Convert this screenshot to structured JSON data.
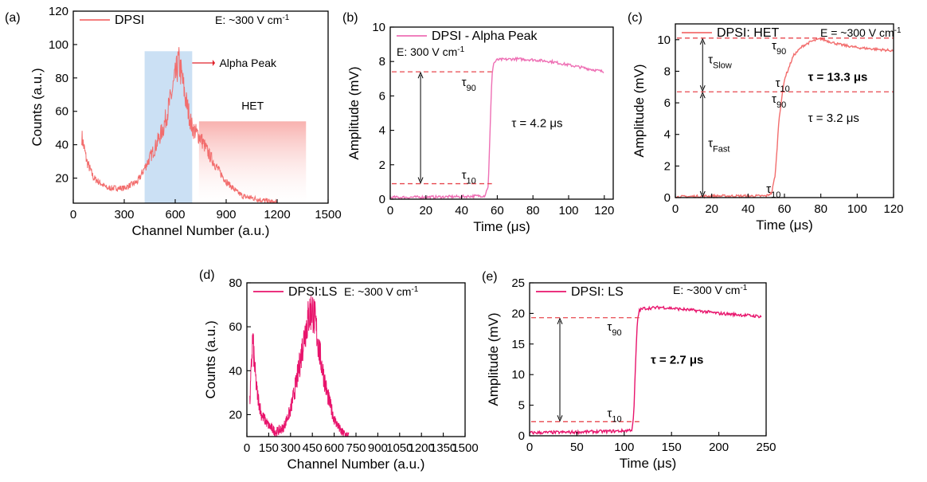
{
  "colors": {
    "salmon": "#f26d6d",
    "salmon_fill": "#f7a3a0",
    "pink": "#ee6fb4",
    "magenta": "#e8146c",
    "band_blue": "#b9d6f0",
    "dash": "#e8484f",
    "tau_red": "#e0242c",
    "tau_light": "#f2787a"
  },
  "chart_data": [
    {
      "id": "a",
      "panel_label": "(a)",
      "type": "line",
      "legend": "DPSI",
      "field": "E: ~300 V cm",
      "field_sup": "-1",
      "xlabel": "Channel Number (a.u.)",
      "ylabel": "Counts (a.u.)",
      "xlim": [
        0,
        1500
      ],
      "ylim": [
        5,
        120
      ],
      "xticks": [
        0,
        300,
        600,
        900,
        1200,
        1500
      ],
      "yticks": [
        20,
        40,
        60,
        80,
        100,
        120
      ],
      "shaded_band": {
        "x": [
          420,
          700
        ],
        "y": [
          5,
          96
        ]
      },
      "annotations": [
        "Alpha Peak",
        "HET"
      ],
      "het_region": {
        "x": [
          740,
          1370
        ],
        "y": [
          5,
          54
        ]
      },
      "x": [
        50,
        80,
        120,
        200,
        300,
        380,
        430,
        480,
        530,
        570,
        600,
        620,
        640,
        660,
        700,
        750,
        800,
        860,
        900,
        960,
        1000,
        1060,
        1100,
        1150,
        1200
      ],
      "values": [
        45,
        30,
        20,
        14,
        14,
        18,
        28,
        38,
        50,
        66,
        80,
        90,
        80,
        68,
        50,
        44,
        34,
        24,
        18,
        12,
        9,
        8,
        7,
        6,
        5
      ]
    },
    {
      "id": "b",
      "panel_label": "(b)",
      "type": "line",
      "legend": "DPSI - Alpha Peak",
      "field": "E: 300 V cm",
      "field_sup": "-1",
      "xlabel": "Time (μs)",
      "ylabel": "Amplitude (mV)",
      "xlim": [
        0,
        125
      ],
      "ylim": [
        0,
        10
      ],
      "xticks": [
        0,
        20,
        40,
        60,
        80,
        100,
        120
      ],
      "yticks": [
        0,
        2,
        4,
        6,
        8,
        10
      ],
      "tau_text": "τ = 4.2 μs",
      "tau90": "τ90",
      "tau10": "τ10",
      "levels": [
        7.4,
        0.9
      ],
      "x": [
        0,
        20,
        40,
        53,
        55,
        56,
        57,
        58,
        60,
        70,
        80,
        90,
        100,
        110,
        120
      ],
      "values": [
        0.1,
        0.12,
        0.15,
        0.2,
        0.8,
        4.0,
        7.2,
        7.9,
        8.1,
        8.15,
        8.1,
        8.0,
        7.8,
        7.6,
        7.4
      ]
    },
    {
      "id": "c",
      "panel_label": "(c)",
      "type": "line",
      "legend": "DPSI: HET",
      "field": "E = ~300 V cm",
      "field_sup": "-1",
      "xlabel": "Time (μs)",
      "ylabel": "Amplitude (mV)",
      "xlim": [
        0,
        120
      ],
      "ylim": [
        0,
        11
      ],
      "xticks": [
        0,
        20,
        40,
        60,
        80,
        100,
        120
      ],
      "yticks": [
        0,
        2,
        4,
        6,
        8,
        10
      ],
      "tau_slow_text": "τ = 13.3 μs",
      "tau_fast_text": "τ = 3.2 μs",
      "tau_slow": "τSlow",
      "tau_fast": "τFast",
      "tau90": "τ90",
      "tau10": "τ10",
      "levels": [
        10.1,
        6.7
      ],
      "x": [
        0,
        20,
        40,
        50,
        53,
        55,
        57,
        60,
        65,
        70,
        75,
        80,
        90,
        100,
        110,
        120
      ],
      "values": [
        0.05,
        0.1,
        0.1,
        0.1,
        0.3,
        1.5,
        5.0,
        7.5,
        9.0,
        9.6,
        9.9,
        10.05,
        9.7,
        9.5,
        9.4,
        9.3
      ]
    },
    {
      "id": "d",
      "panel_label": "(d)",
      "type": "line",
      "legend": "DPSI:LS",
      "field": "E: ~300 V cm",
      "field_sup": "-1",
      "xlabel": "Channel Number (a.u.)",
      "ylabel": "Counts (a.u.)",
      "xlim": [
        0,
        1500
      ],
      "ylim": [
        10,
        80
      ],
      "xticks": [
        0,
        150,
        300,
        450,
        600,
        750,
        900,
        1050,
        1200,
        1350,
        1500
      ],
      "xtick_labels": [
        "0",
        "150",
        "300",
        "450",
        "600",
        "750",
        "900",
        "1050",
        "1200",
        "1350",
        "1500"
      ],
      "yticks": [
        20,
        40,
        60,
        80
      ],
      "x": [
        20,
        40,
        55,
        70,
        100,
        150,
        200,
        250,
        300,
        350,
        400,
        430,
        450,
        470,
        500,
        550,
        600,
        650,
        700
      ],
      "values": [
        25,
        55,
        40,
        30,
        20,
        15,
        12,
        14,
        22,
        38,
        58,
        66,
        68,
        62,
        48,
        30,
        18,
        12,
        10
      ]
    },
    {
      "id": "e",
      "panel_label": "(e)",
      "type": "line",
      "legend": "DPSI: LS",
      "field": "E: ~300 V cm",
      "field_sup": "-1",
      "xlabel": "Time (μs)",
      "ylabel": "Amplitude (mV)",
      "xlim": [
        0,
        250
      ],
      "ylim": [
        0,
        25
      ],
      "xticks": [
        0,
        50,
        100,
        150,
        200,
        250
      ],
      "yticks": [
        0,
        5,
        10,
        15,
        20,
        25
      ],
      "tau_text": "τ = 2.7 μs",
      "tau90": "τ90",
      "tau10": "τ10",
      "levels": [
        19.3,
        2.3
      ],
      "x": [
        0,
        50,
        100,
        108,
        110,
        112,
        114,
        116,
        120,
        140,
        160,
        180,
        200,
        220,
        245
      ],
      "values": [
        0.5,
        0.6,
        0.8,
        1.0,
        3.0,
        12.0,
        19.0,
        20.5,
        20.8,
        21.0,
        20.7,
        20.4,
        20.0,
        19.8,
        19.5
      ]
    }
  ]
}
